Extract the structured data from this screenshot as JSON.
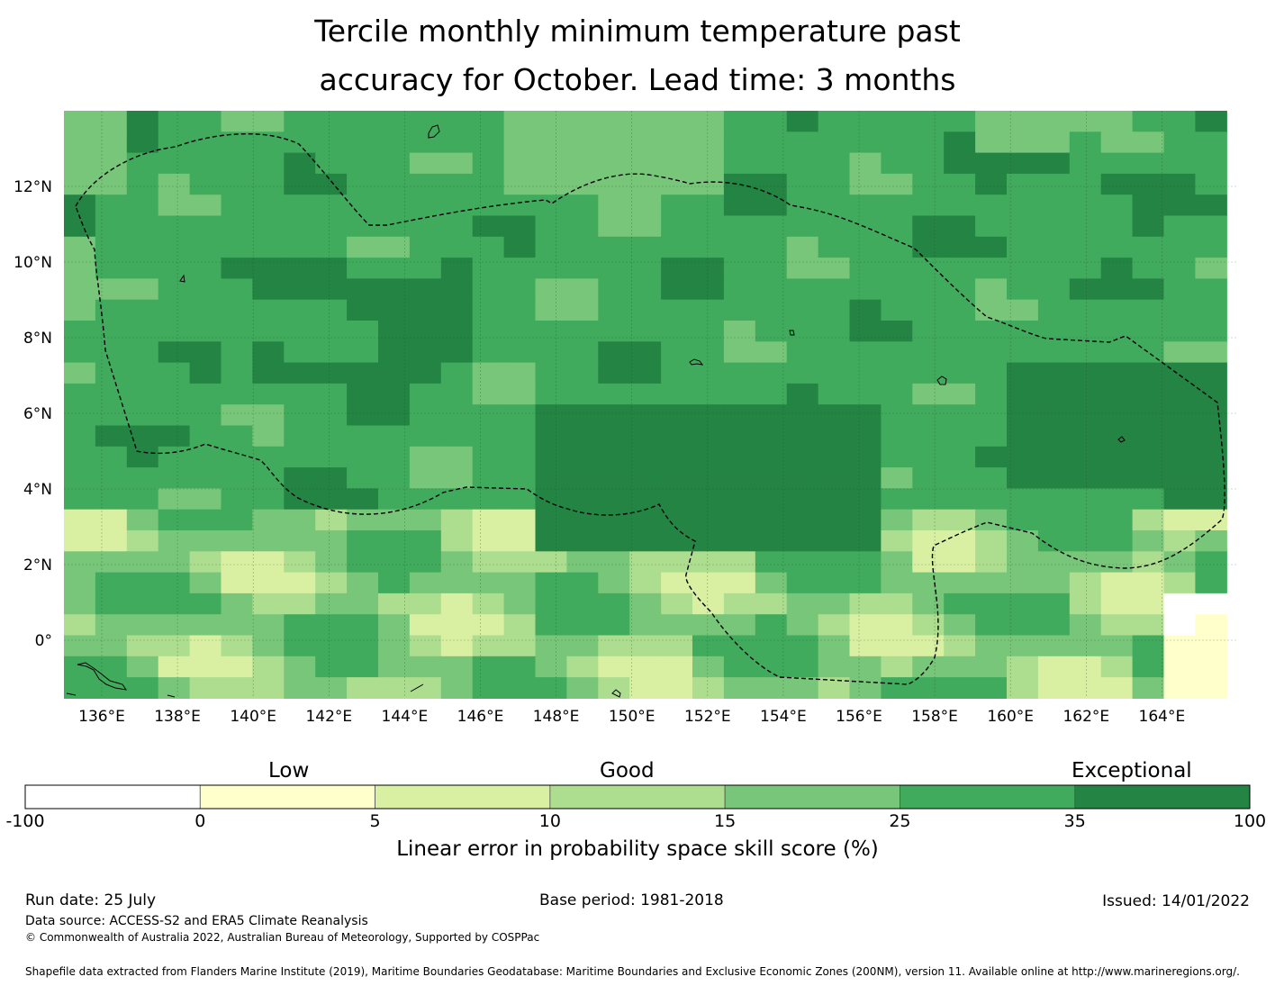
{
  "title": {
    "line1": "Tercile monthly minimum temperature past",
    "line2": "accuracy for October. Lead time: 3 months"
  },
  "map": {
    "lon_ticks": [
      "136°E",
      "138°E",
      "140°E",
      "142°E",
      "144°E",
      "146°E",
      "148°E",
      "150°E",
      "152°E",
      "154°E",
      "156°E",
      "158°E",
      "160°E",
      "162°E",
      "164°E"
    ],
    "lat_ticks": [
      "12°N",
      "10°N",
      "8°N",
      "6°N",
      "4°N",
      "2°N",
      "0°"
    ],
    "colors": [
      "#ffffff",
      "#ffffcc",
      "#d9f0a3",
      "#addd8e",
      "#78c679",
      "#41ab5d",
      "#238443"
    ]
  },
  "colorbar": {
    "categories": [
      "Low",
      "Good",
      "Exceptional"
    ],
    "ticks": [
      "-100",
      "0",
      "5",
      "10",
      "15",
      "25",
      "35",
      "100"
    ],
    "label": "Linear error in probability space skill score (%)"
  },
  "footer": {
    "run_date": "Run date: 25 July",
    "base_period": "Base period: 1981-2018",
    "issued": "Issued: 14/01/2022",
    "data_source": "Data source: ACCESS-S2 and ERA5 Climate Reanalysis",
    "copyright": "© Commonwealth of Australia 2022, Australian Bureau of Meteorology, Supported by COSPPac",
    "shapefile": "Shapefile data extracted from Flanders Marine Institute (2019), Maritime Boundaries Geodatabase: Maritime Boundaries and Exclusive Economic Zones (200NM), version 11. Available online at http://www.marineregions.org/."
  }
}
